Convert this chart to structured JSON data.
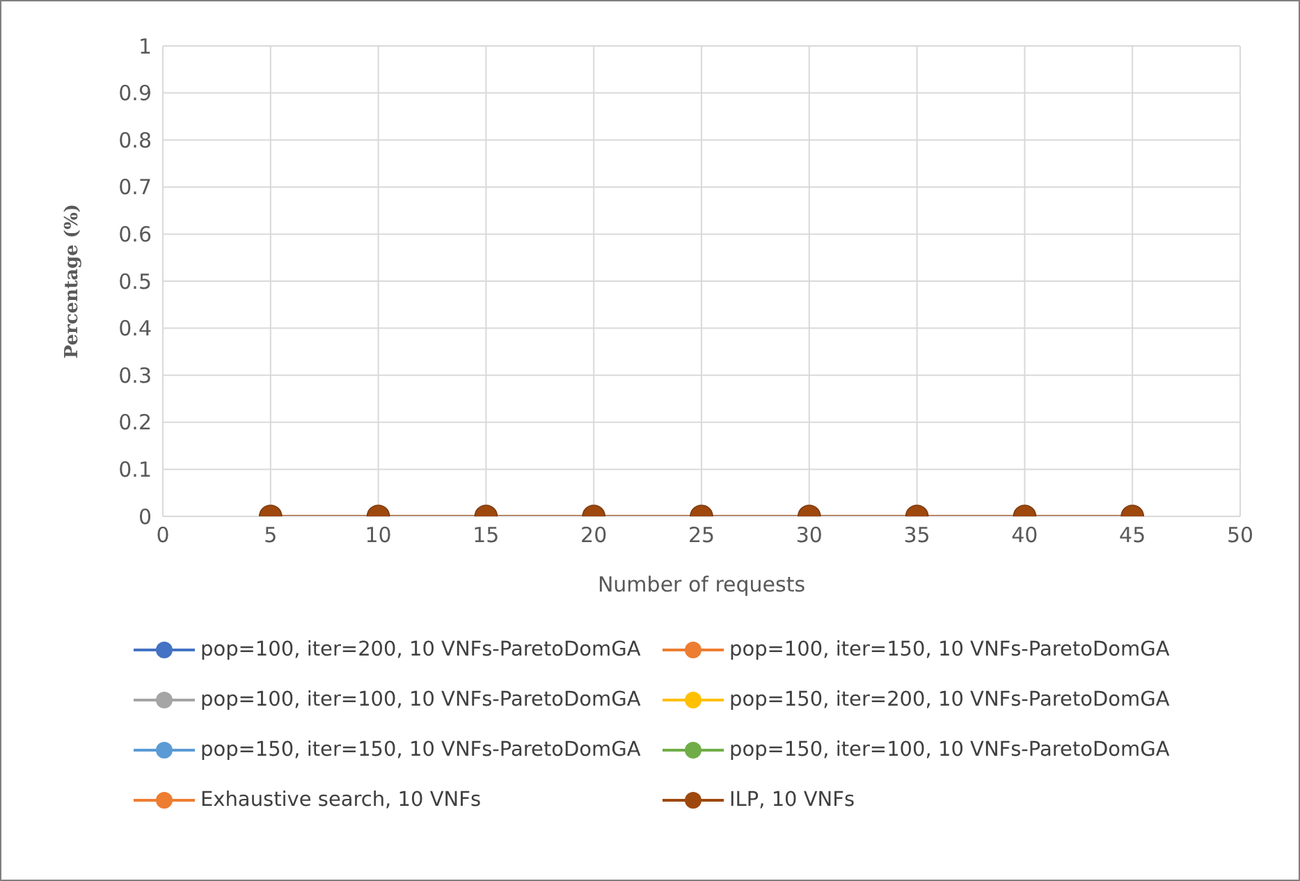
{
  "chart_data": {
    "type": "line",
    "xlabel": "Number of requests",
    "ylabel": "Percentage (%)",
    "x": [
      5,
      10,
      15,
      20,
      25,
      30,
      35,
      40,
      45
    ],
    "series": [
      {
        "name": "pop=100, iter=200, 10 VNFs-ParetoDomGA",
        "color": "#4472c4",
        "values": [
          null,
          null,
          null,
          null,
          null,
          null,
          null,
          null,
          null
        ]
      },
      {
        "name": "pop=100, iter=150, 10 VNFs-ParetoDomGA",
        "color": "#ed7d31",
        "values": [
          null,
          null,
          null,
          null,
          null,
          null,
          null,
          null,
          null
        ]
      },
      {
        "name": "pop=100, iter=100, 10 VNFs-ParetoDomGA",
        "color": "#a5a5a5",
        "values": [
          null,
          null,
          null,
          null,
          null,
          null,
          null,
          null,
          null
        ]
      },
      {
        "name": "pop=150, iter=200, 10 VNFs-ParetoDomGA",
        "color": "#ffc000",
        "values": [
          null,
          null,
          null,
          null,
          null,
          null,
          null,
          null,
          null
        ]
      },
      {
        "name": "pop=150, iter=150, 10 VNFs-ParetoDomGA",
        "color": "#5b9bd5",
        "values": [
          null,
          null,
          null,
          null,
          null,
          null,
          null,
          null,
          null
        ]
      },
      {
        "name": "pop=150, iter=100, 10 VNFs-ParetoDomGA",
        "color": "#70ad47",
        "values": [
          null,
          null,
          null,
          null,
          null,
          null,
          null,
          null,
          null
        ]
      },
      {
        "name": "Exhaustive search, 10 VNFs",
        "color": "#ed7d31",
        "values": [
          null,
          null,
          null,
          null,
          null,
          null,
          null,
          null,
          null
        ]
      },
      {
        "name": "ILP, 10 VNFs",
        "color": "#9e480e",
        "values": [
          0,
          0,
          0,
          0,
          0,
          0,
          0,
          0,
          0
        ]
      }
    ],
    "xlim": [
      0,
      50
    ],
    "xticks": [
      0,
      5,
      10,
      15,
      20,
      25,
      30,
      35,
      40,
      45,
      50
    ],
    "ylim": [
      0,
      1
    ],
    "yticks": [
      0,
      0.1,
      0.2,
      0.3,
      0.4,
      0.5,
      0.6,
      0.7,
      0.8,
      0.9,
      1
    ],
    "grid": true,
    "legend": "bottom",
    "marker": "circle",
    "line_style": "solid"
  }
}
